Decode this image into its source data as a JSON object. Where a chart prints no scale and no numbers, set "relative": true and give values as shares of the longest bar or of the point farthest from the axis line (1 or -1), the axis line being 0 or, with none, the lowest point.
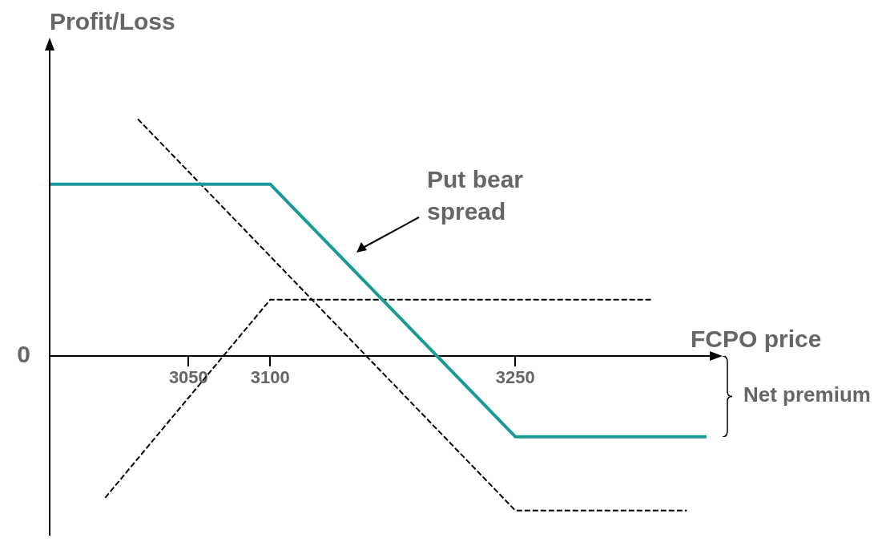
{
  "chart_data": {
    "type": "line",
    "relative": true,
    "xlabel": "FCPO price",
    "ylabel": "Profit/Loss",
    "xlim": [
      2965,
      3370
    ],
    "xticks": [
      3050,
      3100,
      3250
    ],
    "grid": false,
    "legend": false,
    "marker": "none",
    "series": [
      {
        "color": "#1a9a96",
        "line_style": "solid",
        "x": [
          2965,
          3100,
          3250,
          3367
        ],
        "values": [
          0.725,
          0.725,
          -0.342,
          -0.342
        ]
      },
      {
        "color": "#000000",
        "line_style": "dashed",
        "x": [
          2999,
          3100,
          3333
        ],
        "values": [
          -0.6,
          0.237,
          0.237
        ]
      },
      {
        "color": "#000000",
        "line_style": "dashed",
        "x": [
          3019,
          3250,
          3355
        ],
        "values": [
          1,
          -0.654,
          -0.654
        ]
      }
    ],
    "annotations": [
      "Put bear spread",
      "0",
      "Net premium"
    ]
  }
}
